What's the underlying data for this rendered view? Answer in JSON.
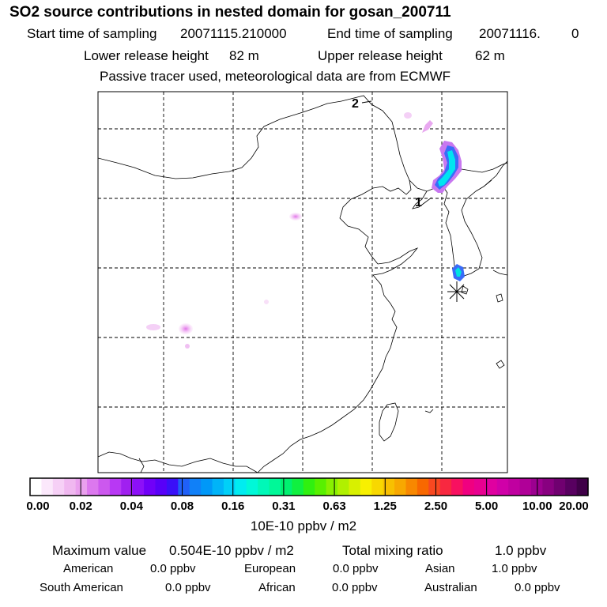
{
  "header": {
    "title": "SO2 source contributions in nested domain for gosan_200711",
    "start_label": "Start time of sampling",
    "start_value": "20071115.210000",
    "end_label": "End time of sampling",
    "end_value": "20071116.",
    "end_suffix": "0",
    "lower_label": "Lower release height",
    "lower_value": "82 m",
    "upper_label": "Upper release height",
    "upper_value": "62 m",
    "note": "Passive tracer used, meteorological data are from ECMWF"
  },
  "map": {
    "point_labels": [
      "1",
      "2"
    ],
    "receptor_marker": "asterisk"
  },
  "colorbar": {
    "labels": [
      "0.00",
      "0.02",
      "0.04",
      "0.08",
      "0.16",
      "0.31",
      "0.63",
      "1.25",
      "2.50",
      "5.00",
      "10.00",
      "20.00"
    ],
    "colors": [
      "#ffffff",
      "#fbe8fb",
      "#f6d0f6",
      "#f0b8f0",
      "#eaa0ee",
      "#dc78ee",
      "#cc58ee",
      "#b838f4",
      "#a020f0",
      "#8c10f8",
      "#7000f8",
      "#5800f8",
      "#3a10f8",
      "#2060f8",
      "#1080f8",
      "#0098f8",
      "#00b4f8",
      "#00d0f8",
      "#00ecf0",
      "#00f8d8",
      "#00f8b8",
      "#00f898",
      "#00f070",
      "#10f040",
      "#30f010",
      "#58f000",
      "#88f000",
      "#b0f000",
      "#d8f000",
      "#f8f000",
      "#f8d800",
      "#f8c000",
      "#f8a800",
      "#f88800",
      "#f86800",
      "#f84820",
      "#f82840",
      "#f81060",
      "#f00080",
      "#e80090",
      "#e000a0",
      "#d000a8",
      "#c000a0",
      "#b00098",
      "#9c0090",
      "#880080",
      "#700070",
      "#580060",
      "#400048"
    ],
    "unit": "10E-10 ppbv / m2"
  },
  "summary": {
    "max_label": "Maximum value",
    "max_value": "0.504E-10 ppbv / m2",
    "total_label": "Total mixing ratio",
    "total_value": "1.0 ppbv",
    "regions": [
      {
        "name": "American",
        "value": "0.0 ppbv"
      },
      {
        "name": "European",
        "value": "0.0 ppbv"
      },
      {
        "name": "Asian",
        "value": "1.0 ppbv"
      },
      {
        "name": "South American",
        "value": "0.0 ppbv"
      },
      {
        "name": "African",
        "value": "0.0 ppbv"
      },
      {
        "name": "Australian",
        "value": "0.0 ppbv"
      }
    ]
  }
}
